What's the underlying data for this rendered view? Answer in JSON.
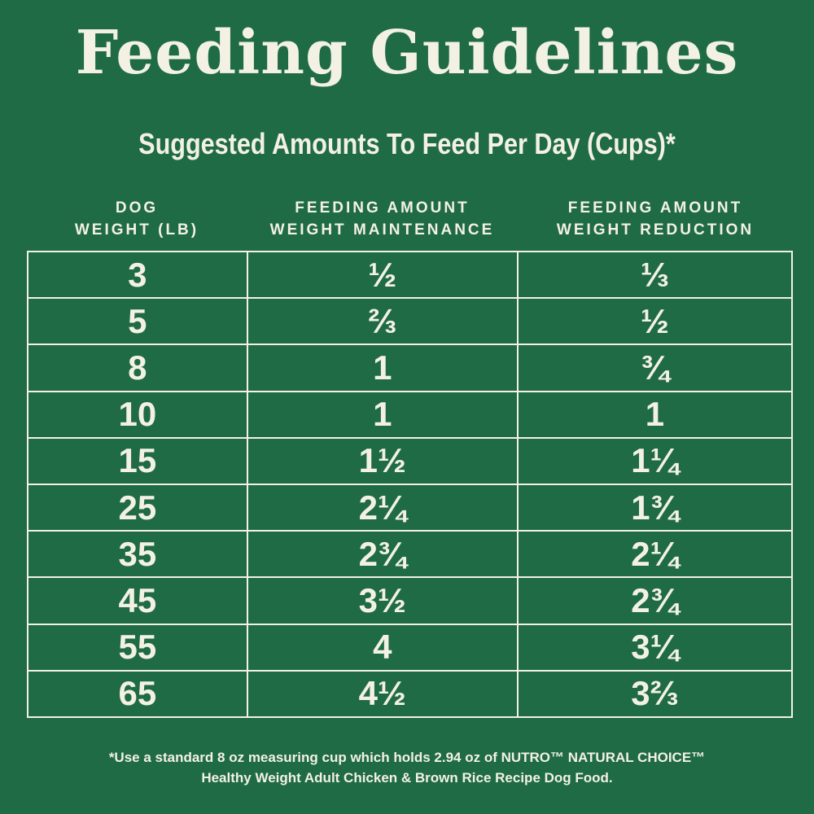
{
  "header": {
    "title": "Feeding Guidelines",
    "subtitle": "Suggested Amounts To Feed Per Day (Cups)*"
  },
  "table": {
    "columns": [
      [
        "DOG",
        "WEIGHT (LB)"
      ],
      [
        "FEEDING AMOUNT",
        "WEIGHT MAINTENANCE"
      ],
      [
        "FEEDING AMOUNT",
        "WEIGHT REDUCTION"
      ]
    ],
    "rows": [
      [
        "3",
        "½",
        "⅓"
      ],
      [
        "5",
        "⅔",
        "½"
      ],
      [
        "8",
        "1",
        "¾"
      ],
      [
        "10",
        "1",
        "1"
      ],
      [
        "15",
        "1½",
        "1¼"
      ],
      [
        "25",
        "2¼",
        "1¾"
      ],
      [
        "35",
        "2¾",
        "2¼"
      ],
      [
        "45",
        "3½",
        "2¾"
      ],
      [
        "55",
        "4",
        "3¼"
      ],
      [
        "65",
        "4½",
        "3⅔"
      ]
    ]
  },
  "footnote": [
    "*Use a standard 8 oz measuring cup which holds 2.94 oz of NUTRO™ NATURAL CHOICE™",
    "Healthy Weight Adult Chicken & Brown Rice Recipe Dog Food."
  ]
}
